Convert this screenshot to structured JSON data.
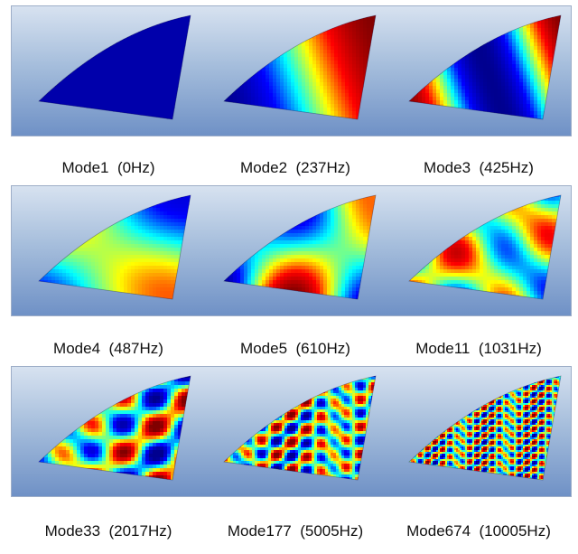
{
  "rows": [
    {
      "modes": [
        {
          "label": "Mode1",
          "freq": "(0Hz)",
          "pattern": "uniform",
          "kx": 0,
          "ky": 0
        },
        {
          "label": "Mode2",
          "freq": "(237Hz)",
          "pattern": "axial",
          "kx": 1,
          "ky": 0
        },
        {
          "label": "Mode3",
          "freq": "(425Hz)",
          "pattern": "axial",
          "kx": 2,
          "ky": 0
        }
      ]
    },
    {
      "modes": [
        {
          "label": "Mode4",
          "freq": "(487Hz)",
          "pattern": "mixed",
          "kx": 1,
          "ky": 1
        },
        {
          "label": "Mode5",
          "freq": "(610Hz)",
          "pattern": "mixed",
          "kx": 2,
          "ky": 1
        },
        {
          "label": "Mode11",
          "freq": "(1031Hz)",
          "pattern": "mixed",
          "kx": 3,
          "ky": 2
        }
      ]
    },
    {
      "modes": [
        {
          "label": "Mode33",
          "freq": "(2017Hz)",
          "pattern": "mixed",
          "kx": 5,
          "ky": 4
        },
        {
          "label": "Mode177",
          "freq": "(5005Hz)",
          "pattern": "mixed",
          "kx": 11,
          "ky": 8
        },
        {
          "label": "Mode674",
          "freq": "(10005Hz)",
          "pattern": "mixed",
          "kx": 22,
          "ky": 16
        }
      ]
    }
  ],
  "colormap": [
    "#00008f",
    "#0000ff",
    "#00ffff",
    "#ffff00",
    "#ff0000",
    "#800000"
  ],
  "background": {
    "top": "#d7e2f0",
    "bottom": "#6f91c6"
  }
}
